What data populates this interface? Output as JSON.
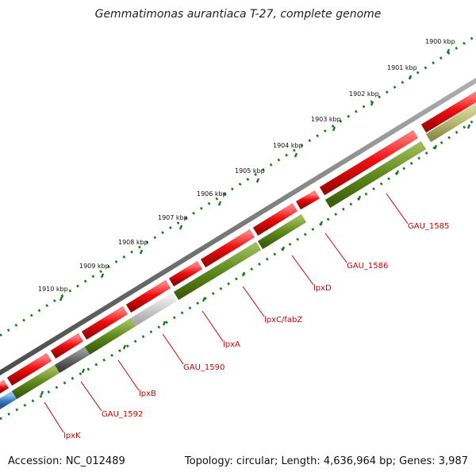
{
  "title": "Gemmatimonas aurantiaca T-27, complete genome",
  "accession_text": "Accession: NC_012489",
  "summary_text": "Topology: circular; Length: 4,636,964 bp; Genes: 3,987",
  "colors": {
    "forward_gene": "#ee1111",
    "reverse_gene": "#5f8a1c",
    "reverse_gene_light": "#b8b870",
    "gray_gene_light": "#cccccc",
    "gray_gene_dark": "#666666",
    "blue_gene": "#3a7fc0",
    "backbone": "#777777",
    "tick_marks": "#1a7a1a",
    "gene_label": "#cc0000"
  },
  "ticks": [
    {
      "label": "1900 kbp"
    },
    {
      "label": "1901 kbp"
    },
    {
      "label": "1902 kbp"
    },
    {
      "label": "1903 kbp"
    },
    {
      "label": "1904 kbp"
    },
    {
      "label": "1905 kbp"
    },
    {
      "label": "1906 kbp"
    },
    {
      "label": "1907 kbp"
    },
    {
      "label": "1908 kbp"
    },
    {
      "label": "1909 kbp"
    },
    {
      "label": "1910 kbp"
    }
  ],
  "gene_labels": [
    {
      "text": "GAU_1585"
    },
    {
      "text": "GAU_1586"
    },
    {
      "text": "lpxD"
    },
    {
      "text": "lpxC/fabZ"
    },
    {
      "text": "lpxA"
    },
    {
      "text": "GAU_1590"
    },
    {
      "text": "lpxB"
    },
    {
      "text": "GAU_1592"
    },
    {
      "text": "lpxK"
    }
  ]
}
